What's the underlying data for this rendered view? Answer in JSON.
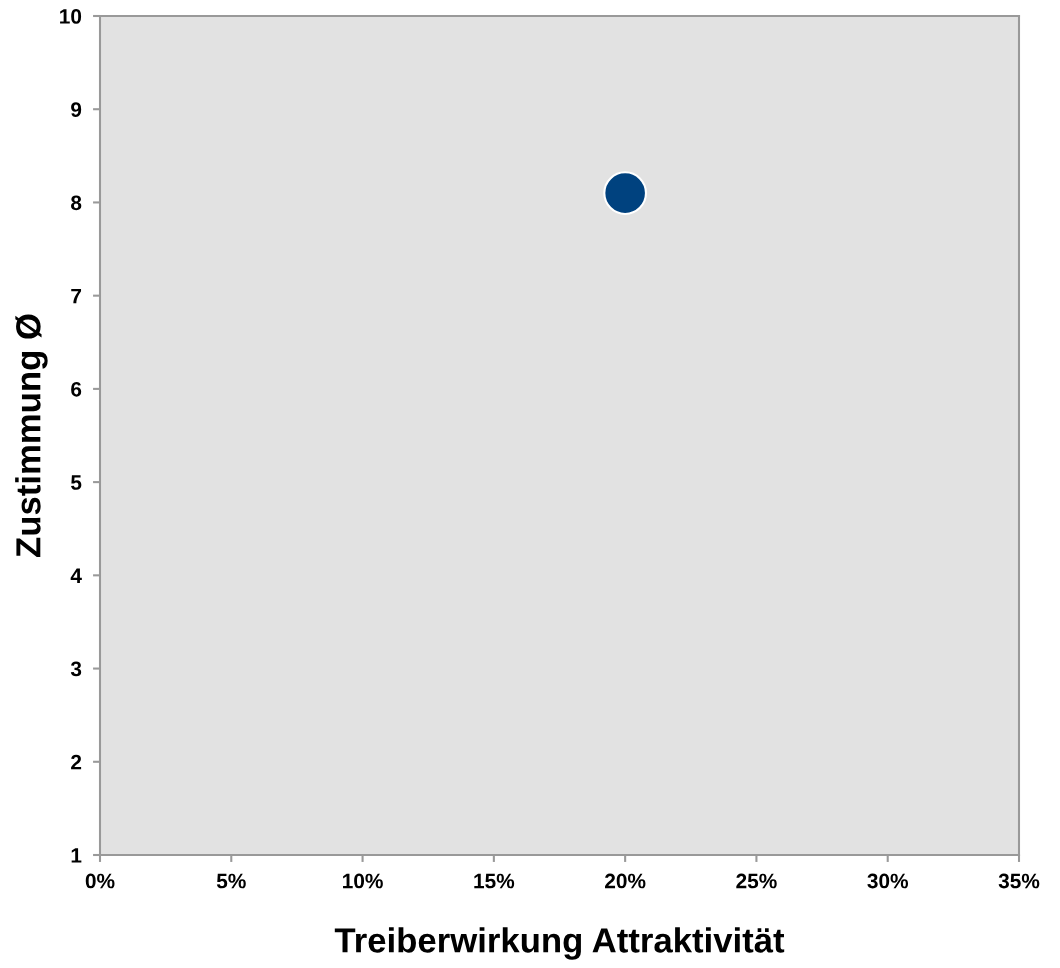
{
  "chart_data": {
    "type": "scatter",
    "xlabel": "Treiberwirkung Attraktivität",
    "ylabel": "Zustimmung Ø",
    "x": [
      20
    ],
    "values": [
      8.1
    ],
    "color": "#00427f",
    "marker": "circle",
    "grid": false,
    "legend": false,
    "xlim": [
      0,
      35
    ],
    "xticks": [
      {
        "value": 0,
        "label": "0%"
      },
      {
        "value": 5,
        "label": "5%"
      },
      {
        "value": 10,
        "label": "10%"
      },
      {
        "value": 15,
        "label": "15%"
      },
      {
        "value": 20,
        "label": "20%"
      },
      {
        "value": 25,
        "label": "25%"
      },
      {
        "value": 30,
        "label": "30%"
      },
      {
        "value": 35,
        "label": "35%"
      }
    ],
    "ylim": [
      1,
      10
    ],
    "yticks": [
      1,
      2,
      3,
      4,
      5,
      6,
      7,
      8,
      9,
      10
    ]
  }
}
